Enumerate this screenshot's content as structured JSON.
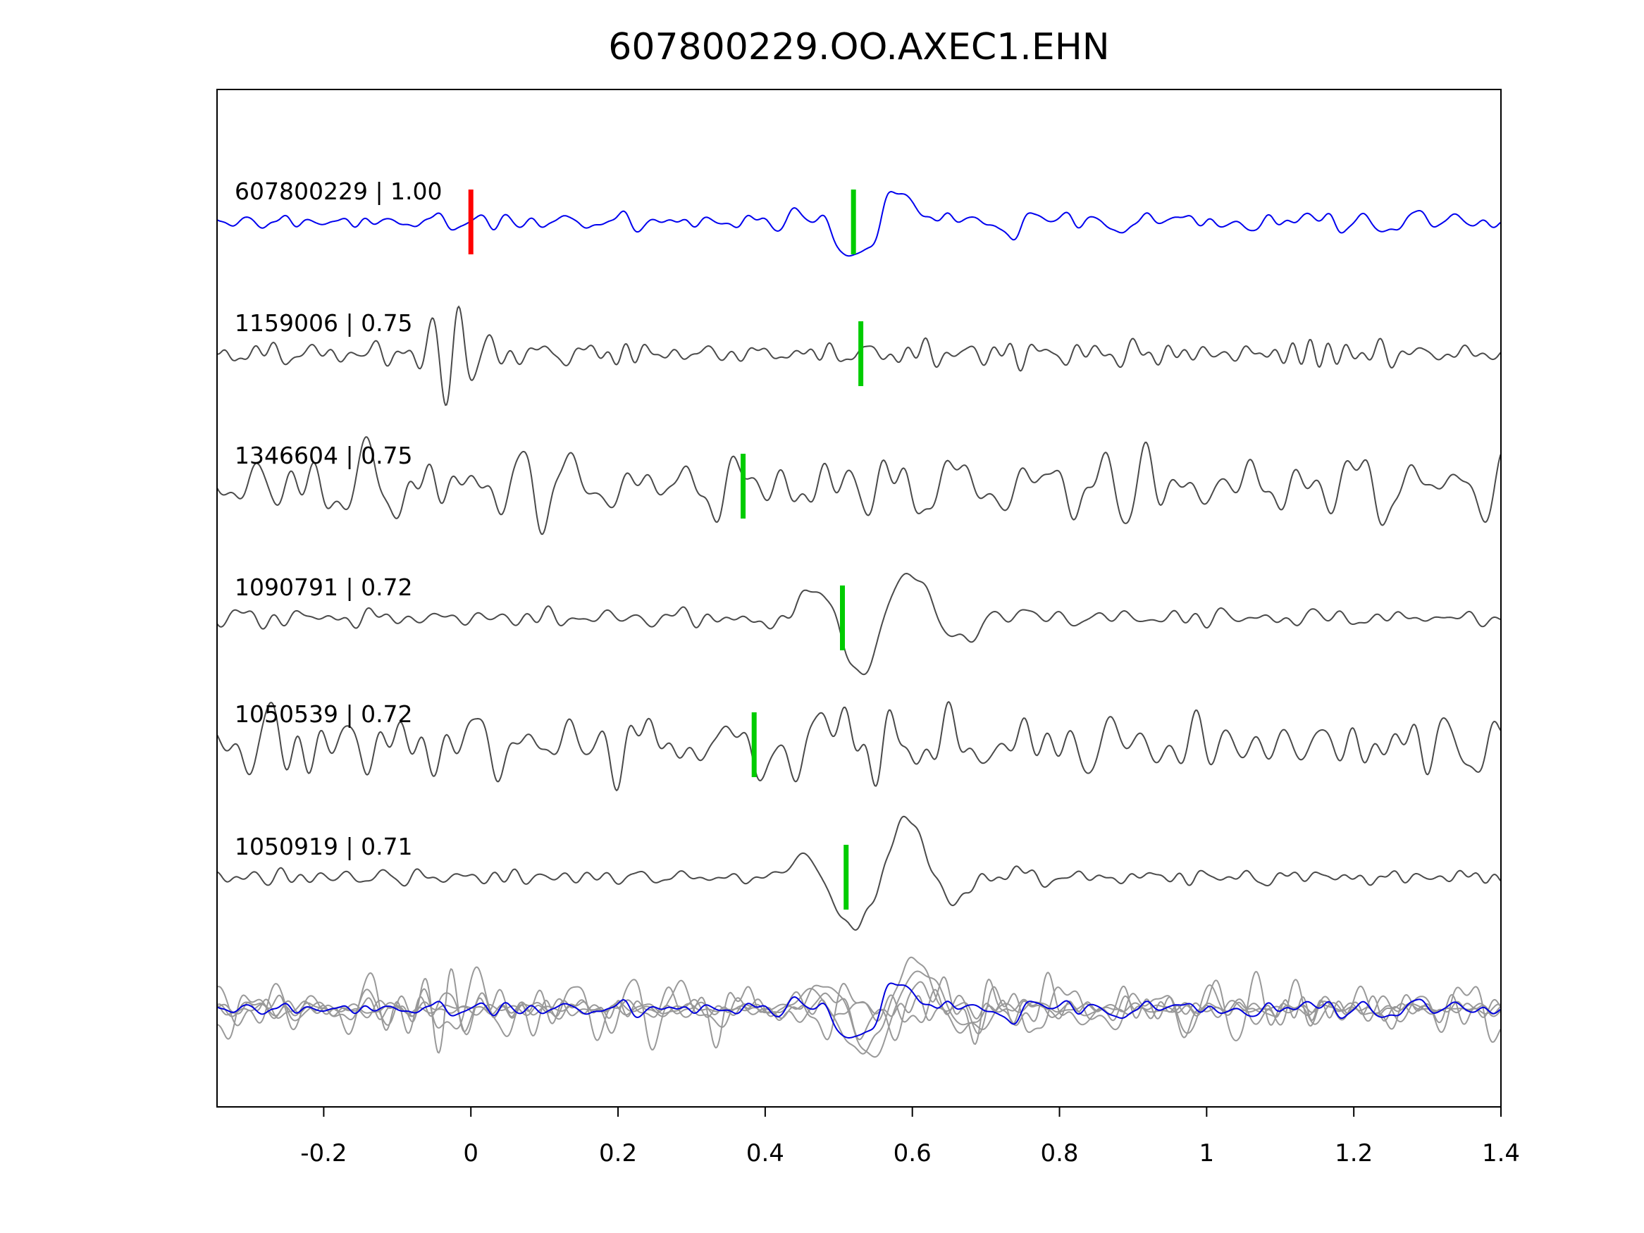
{
  "title": "607800229.OO.AXEC1.EHN",
  "colors": {
    "background": "#ffffff",
    "axis": "#000000",
    "template_trace": "#0000ee",
    "match_trace": "#4a4a4a",
    "overlay_gray": "#999999",
    "overlay_blue": "#0000dd",
    "pick_marker": "#00cc00",
    "origin_marker": "#ff0000"
  },
  "x_axis": {
    "ticks": [
      {
        "value": -0.2,
        "label": "-0.2"
      },
      {
        "value": 0,
        "label": "0"
      },
      {
        "value": 0.2,
        "label": "0.2"
      },
      {
        "value": 0.4,
        "label": "0.4"
      },
      {
        "value": 0.6,
        "label": "0.6"
      },
      {
        "value": 0.8,
        "label": "0.8"
      },
      {
        "value": 1,
        "label": "1"
      },
      {
        "value": 1.2,
        "label": "1.2"
      },
      {
        "value": 1.4,
        "label": "1.4"
      }
    ]
  },
  "chart_data": {
    "type": "line",
    "title": "607800229.OO.AXEC1.EHN",
    "xlabel": "",
    "ylabel": "",
    "xlim": [
      -0.345,
      1.4
    ],
    "x_ticks": [
      -0.2,
      0,
      0.2,
      0.4,
      0.6,
      0.8,
      1,
      1.2,
      1.4
    ],
    "description": "Template waveform (blue, top) compared against five matched event waveforms (dark gray), each labeled 'event_id | correlation'. Green vertical bars mark phase picks, red bar marks template origin pick at t=0. Bottom row overlays all traces aligned on their picks.",
    "traces": [
      {
        "id": "607800229",
        "correlation": 1.0,
        "label": "607800229 | 1.00",
        "role": "template",
        "pick_time": 0.52,
        "origin_marker_time": 0,
        "seed": 12,
        "noise_amp": 6,
        "noise_fmin": 10,
        "noise_fmax": 48,
        "event": {
          "t0": 0.55,
          "freq": 7,
          "amp": 70,
          "width": 0.07
        },
        "post_noise": {
          "amp": 13,
          "tau": 0.5
        }
      },
      {
        "id": "1159006",
        "correlation": 0.75,
        "label": "1159006 | 0.75",
        "role": "match",
        "pick_time": 0.53,
        "seed": 23,
        "noise_amp": 8,
        "noise_fmin": 10,
        "noise_fmax": 48,
        "event": {
          "t0": -0.025,
          "freq": 26,
          "amp": 70,
          "width": 0.04
        }
      },
      {
        "id": "1346604",
        "correlation": 0.75,
        "label": "1346604 | 0.75",
        "role": "match",
        "pick_time": 0.37,
        "seed": 34,
        "noise_amp": 26,
        "noise_fmin": 7,
        "noise_fmax": 38
      },
      {
        "id": "1090791",
        "correlation": 0.72,
        "label": "1090791 | 0.72",
        "role": "match",
        "pick_time": 0.505,
        "seed": 45,
        "noise_amp": 6,
        "noise_fmin": 10,
        "noise_fmax": 45,
        "event": {
          "t0": 0.565,
          "freq": 7,
          "amp": 80,
          "width": 0.12
        },
        "post_noise": {
          "amp": 11,
          "tau": 0.5
        }
      },
      {
        "id": "1050539",
        "correlation": 0.72,
        "label": "1050539 | 0.72",
        "role": "match",
        "pick_time": 0.385,
        "seed": 56,
        "noise_amp": 22,
        "noise_fmin": 7,
        "noise_fmax": 38,
        "event": {
          "t0": 0.45,
          "freq": 7,
          "amp": 50,
          "width": 0.06
        }
      },
      {
        "id": "1050919",
        "correlation": 0.71,
        "label": "1050919 | 0.71",
        "role": "match",
        "pick_time": 0.51,
        "seed": 67,
        "noise_amp": 5,
        "noise_fmin": 10,
        "noise_fmax": 45,
        "event": {
          "t0": 0.555,
          "freq": 6.5,
          "amp": 85,
          "width": 0.1
        },
        "post_noise": {
          "amp": 9,
          "tau": 0.45
        }
      }
    ],
    "overlay": {
      "scale": 0.85,
      "aligned": true,
      "align_time": 0.52
    }
  }
}
